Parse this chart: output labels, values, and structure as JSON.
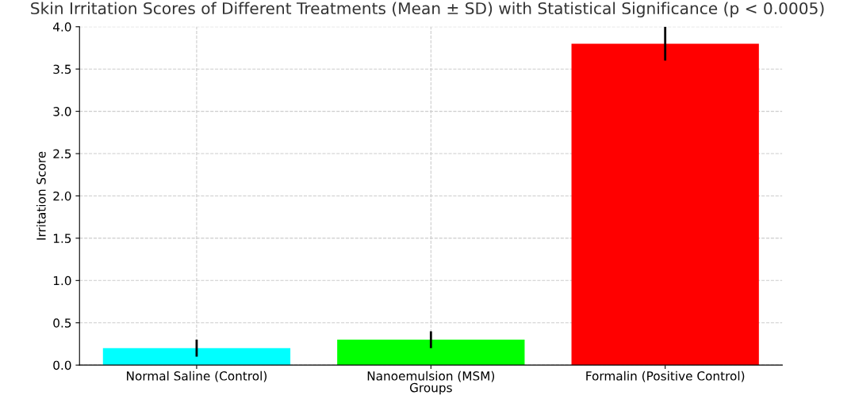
{
  "chart_data": {
    "type": "bar",
    "title": "Skin Irritation Scores of Different Treatments (Mean ± SD) with Statistical Significance (p < 0.0005)",
    "xlabel": "Groups",
    "ylabel": "Irritation Score",
    "categories": [
      "Normal Saline (Control)",
      "Nanoemulsion (MSM)",
      "Formalin (Positive Control)"
    ],
    "values": [
      0.2,
      0.3,
      3.8
    ],
    "errors": [
      0.1,
      0.1,
      0.2
    ],
    "colors": [
      "#00ffff",
      "#00ff00",
      "#ff0000"
    ],
    "ylim": [
      0,
      4.0
    ],
    "yticks": [
      {
        "value": 0,
        "label": "0.0"
      },
      {
        "value": 0.5,
        "label": "0.5"
      },
      {
        "value": 1.0,
        "label": "1.0"
      },
      {
        "value": 1.5,
        "label": "1.5"
      },
      {
        "value": 2.0,
        "label": "2.0"
      },
      {
        "value": 2.5,
        "label": "2.5"
      },
      {
        "value": 3.0,
        "label": "3.0"
      },
      {
        "value": 3.5,
        "label": "3.5"
      },
      {
        "value": 4.0,
        "label": "4.0"
      }
    ],
    "grid": true
  }
}
